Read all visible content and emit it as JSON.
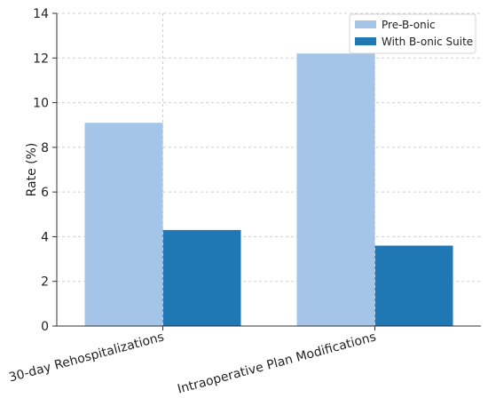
{
  "chart_data": {
    "type": "bar",
    "categories": [
      "30-day Rehospitalizations",
      "Intraoperative Plan Modifications"
    ],
    "series": [
      {
        "name": "Pre-B-onic",
        "values": [
          9.1,
          12.2
        ],
        "color": "#a4c4e8"
      },
      {
        "name": "With B-onic Suite",
        "values": [
          4.3,
          3.6
        ],
        "color": "#1f77b4"
      }
    ],
    "ylabel": "Rate (%)",
    "xlabel": "",
    "title": "",
    "ylim": [
      0,
      14
    ],
    "yticks": [
      "0",
      "2",
      "4",
      "6",
      "8",
      "10",
      "12",
      "14"
    ],
    "grid": true,
    "legend_position": "top-right"
  }
}
